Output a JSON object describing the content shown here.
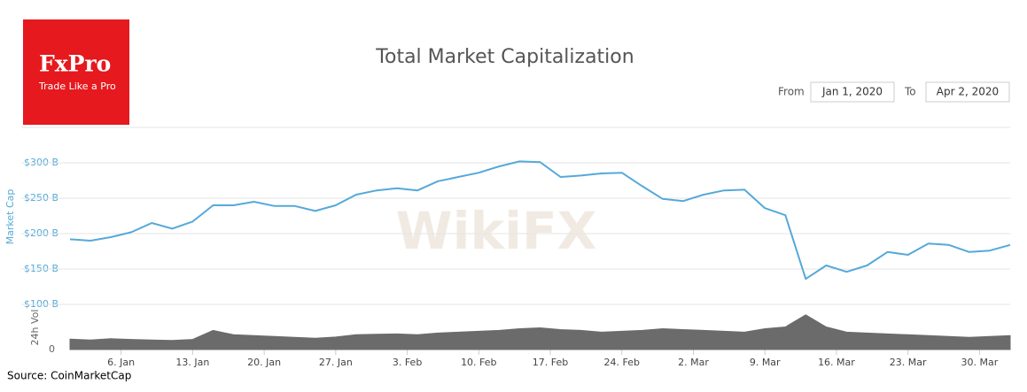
{
  "logo": {
    "name": "FxPro",
    "tagline": "Trade Like a Pro"
  },
  "range_selector": {
    "from_label": "From",
    "from": "Jan 1, 2020",
    "to_label": "To",
    "to": "Apr 2, 2020"
  },
  "source": "Source: CoinMarketCap",
  "watermark": "WikiFX",
  "chart_data": {
    "type": "line",
    "title": "Total Market Capitalization",
    "ylabel": "Market Cap",
    "y2label": "24h Vol",
    "x": [
      1,
      3,
      5,
      7,
      9,
      11,
      13,
      15,
      17,
      19,
      21,
      23,
      25,
      27,
      29,
      31,
      33,
      35,
      37,
      39,
      41,
      43,
      45,
      47,
      49,
      51,
      53,
      55,
      57,
      59,
      61,
      63,
      65,
      67,
      69,
      71,
      73,
      75,
      77,
      79,
      81,
      83,
      85,
      87,
      89,
      91,
      93
    ],
    "xlim": [
      1,
      93
    ],
    "xticks": [
      {
        "value": 6,
        "label": "6. Jan"
      },
      {
        "value": 13,
        "label": "13. Jan"
      },
      {
        "value": 20,
        "label": "20. Jan"
      },
      {
        "value": 27,
        "label": "27. Jan"
      },
      {
        "value": 34,
        "label": "3. Feb"
      },
      {
        "value": 41,
        "label": "10. Feb"
      },
      {
        "value": 48,
        "label": "17. Feb"
      },
      {
        "value": 55,
        "label": "24. Feb"
      },
      {
        "value": 62,
        "label": "2. Mar"
      },
      {
        "value": 69,
        "label": "9. Mar"
      },
      {
        "value": 76,
        "label": "16. Mar"
      },
      {
        "value": 83,
        "label": "23. Mar"
      },
      {
        "value": 90,
        "label": "30. Mar"
      }
    ],
    "ylim": [
      100,
      350
    ],
    "yticks": [
      {
        "value": 100,
        "label": "$100 B"
      },
      {
        "value": 150,
        "label": "$150 B"
      },
      {
        "value": 200,
        "label": "$200 B"
      },
      {
        "value": 250,
        "label": "$250 B"
      },
      {
        "value": 300,
        "label": "$300 B"
      }
    ],
    "y2lim": [
      0,
      250
    ],
    "y2ticks": [
      0
    ],
    "grid": true,
    "series": [
      {
        "color": "#55a9d9",
        "values": [
          192,
          190,
          195,
          202,
          215,
          207,
          217,
          240,
          240,
          245,
          239,
          239,
          232,
          240,
          255,
          261,
          264,
          261,
          274,
          280,
          286,
          295,
          302,
          301,
          280,
          282,
          285,
          286,
          267,
          249,
          246,
          255,
          261,
          262,
          236,
          226,
          136,
          155,
          146,
          155,
          174,
          170,
          186,
          184,
          174,
          176,
          184
        ]
      },
      {
        "color": "#6b6b6b",
        "axis": "y2",
        "values": [
          60,
          55,
          62,
          58,
          55,
          52,
          58,
          110,
          85,
          80,
          75,
          70,
          65,
          72,
          85,
          88,
          90,
          85,
          95,
          100,
          105,
          110,
          120,
          125,
          115,
          110,
          100,
          105,
          110,
          120,
          115,
          110,
          105,
          100,
          120,
          130,
          200,
          130,
          100,
          95,
          90,
          85,
          80,
          75,
          70,
          75,
          80
        ]
      }
    ]
  }
}
